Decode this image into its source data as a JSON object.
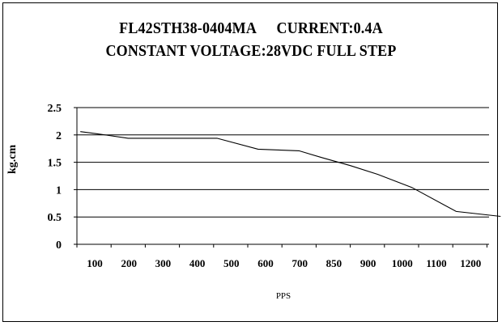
{
  "chart_data": {
    "type": "line",
    "title_line1_a": "FL42STH38-0404MA",
    "title_line1_b": "CURRENT:0.4A",
    "title_line2": "CONSTANT VOLTAGE:28VDC FULL STEP",
    "xlabel": "PPS",
    "ylabel": "kg.cm",
    "categories": [
      "100",
      "200",
      "300",
      "400",
      "500",
      "600",
      "700",
      "850",
      "900",
      "1000",
      "1100",
      "1200"
    ],
    "y_ticks": [
      "0",
      "0.5",
      "1",
      "1.5",
      "2",
      "2.5"
    ],
    "ylim": [
      0,
      2.5
    ],
    "grid": "horizontal",
    "series": [
      {
        "values": [
          {
            "x": 0.1,
            "y": 2.06
          },
          {
            "x": 0.6,
            "y": 2.02
          },
          {
            "x": 1.5,
            "y": 1.94
          },
          {
            "x": 2.5,
            "y": 1.94
          },
          {
            "x": 4.1,
            "y": 1.94
          },
          {
            "x": 5.3,
            "y": 1.74
          },
          {
            "x": 6.5,
            "y": 1.71
          },
          {
            "x": 7.2,
            "y": 1.58
          },
          {
            "x": 8.0,
            "y": 1.44
          },
          {
            "x": 8.8,
            "y": 1.28
          },
          {
            "x": 9.8,
            "y": 1.04
          },
          {
            "x": 11.1,
            "y": 0.6
          },
          {
            "x": 12.4,
            "y": 0.51
          }
        ]
      }
    ],
    "line_color": "#000000"
  }
}
